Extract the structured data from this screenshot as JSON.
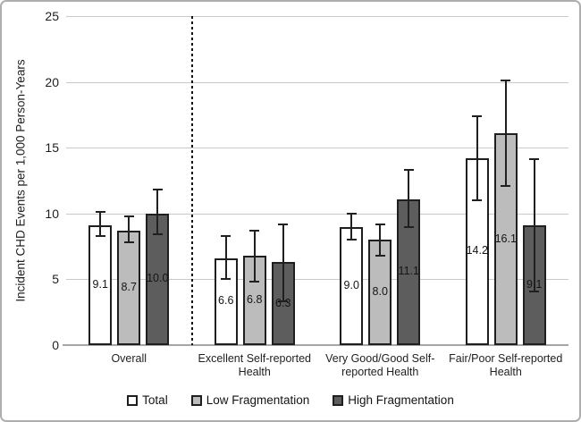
{
  "chart_data": {
    "type": "bar",
    "title": "",
    "xlabel": "",
    "ylabel": "Incident CHD Events per 1,000 Person-Years",
    "ylim": [
      0,
      25
    ],
    "yticks": [
      0,
      5,
      10,
      15,
      20,
      25
    ],
    "grid": true,
    "legend_position": "bottom",
    "separator": {
      "style": "dashed",
      "after_category_index": 0
    },
    "categories": [
      "Overall",
      "Excellent Self-reported\nHealth",
      "Very Good/Good Self-\nreported Health",
      "Fair/Poor Self-reported\nHealth"
    ],
    "series": [
      {
        "name": "Total",
        "fill": "#ffffff",
        "values": [
          9.1,
          6.6,
          9.0,
          14.2
        ],
        "labels": [
          "9.1",
          "6.6",
          "9.0",
          "14.2"
        ],
        "error_low": [
          8.3,
          5.0,
          8.0,
          11.0
        ],
        "error_high": [
          10.1,
          8.3,
          10.0,
          17.4
        ]
      },
      {
        "name": "Low Fragmentation",
        "fill": "#bcbcbc",
        "values": [
          8.7,
          6.8,
          8.0,
          16.1
        ],
        "labels": [
          "8.7",
          "6.8",
          "8.0",
          "16.1"
        ],
        "error_low": [
          7.8,
          4.8,
          6.8,
          12.1
        ],
        "error_high": [
          9.8,
          8.7,
          9.2,
          20.1
        ]
      },
      {
        "name": "High Fragmentation",
        "fill": "#5d5d5d",
        "values": [
          10.0,
          6.3,
          11.1,
          9.1
        ],
        "labels": [
          "10.0",
          "6.3",
          "11.1",
          "9.1"
        ],
        "error_low": [
          8.4,
          3.3,
          9.0,
          4.1
        ],
        "error_high": [
          11.8,
          9.2,
          13.3,
          14.1
        ]
      }
    ],
    "colors": {
      "grid": "#c9c9c9",
      "axis_line": "#a6a6a6",
      "bar_border": "#1f1f1f",
      "error_bar": "#202020",
      "text": "#1f1f1f",
      "separator": "#141414"
    }
  }
}
